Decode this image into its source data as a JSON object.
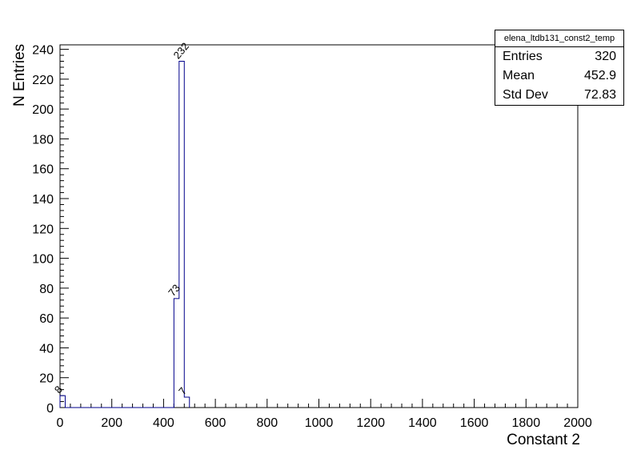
{
  "stats_box": {
    "title": "elena_ltdb131_const2_temp",
    "rows": [
      {
        "label": "Entries",
        "value": "320"
      },
      {
        "label": "Mean",
        "value": "452.9"
      },
      {
        "label": "Std Dev",
        "value": "72.83"
      }
    ]
  },
  "chart_data": {
    "type": "bar",
    "subtype": "root-step-histogram",
    "title": "elena_ltdb131_const2_temp",
    "xlabel": "Constant 2",
    "ylabel": "N Entries",
    "xlim": [
      0,
      2000
    ],
    "ylim": [
      0,
      243
    ],
    "x_major_ticks": [
      0,
      200,
      400,
      600,
      800,
      1000,
      1200,
      1400,
      1600,
      1800,
      2000
    ],
    "x_minor_tick_step": 40,
    "y_major_ticks": [
      0,
      20,
      40,
      60,
      80,
      100,
      120,
      140,
      160,
      180,
      200,
      220,
      240
    ],
    "y_minor_tick_step": 4,
    "grid": false,
    "legend_position": "stats-box-top-right",
    "bins": [
      {
        "x_low": 0,
        "x_high": 20,
        "count": 8
      },
      {
        "x_low": 440,
        "x_high": 460,
        "count": 73
      },
      {
        "x_low": 460,
        "x_high": 480,
        "count": 232
      },
      {
        "x_low": 480,
        "x_high": 500,
        "count": 7
      }
    ],
    "bin_count_labels": [
      "8",
      "73",
      "232",
      "7"
    ],
    "stats": {
      "entries": 320,
      "mean": 452.9,
      "std_dev": 72.83
    }
  },
  "colors": {
    "histogram_line": "#00008b",
    "axis": "#000000",
    "text": "#000000",
    "background": "#ffffff"
  }
}
